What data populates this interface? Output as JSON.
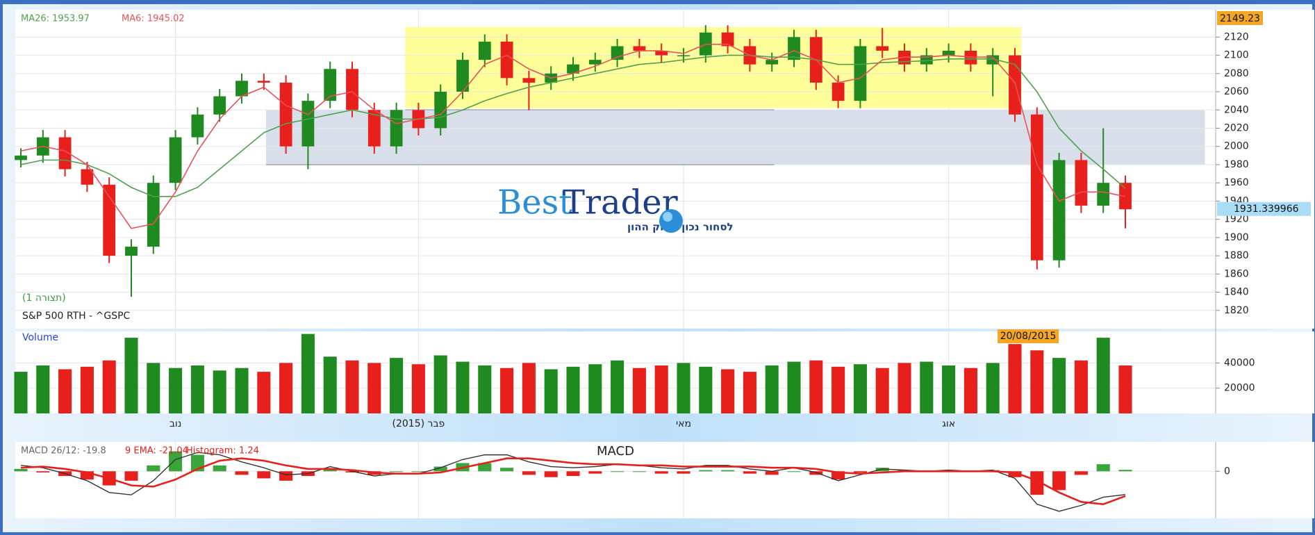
{
  "chart_data": [
    {
      "type": "candlestick",
      "title": "S&P 500 RTH - ^GSPC",
      "subtitle": "(תצורה 1)",
      "watermark": {
        "brand_first": "Best",
        "brand_second": "Trader",
        "tagline": "לסחור נכון בשוק ההון"
      },
      "categories": [
        null,
        null,
        null,
        null,
        null,
        null,
        null,
        "נוב",
        null,
        null,
        null,
        null,
        null,
        null,
        null,
        null,
        null,
        null,
        "פבר (2015)",
        null,
        null,
        null,
        null,
        null,
        null,
        null,
        null,
        null,
        null,
        null,
        "מאי",
        null,
        null,
        null,
        null,
        null,
        null,
        null,
        null,
        null,
        null,
        null,
        "אוג",
        null,
        null,
        null,
        null,
        null,
        null,
        null,
        null
      ],
      "open": [
        1985,
        1990,
        2010,
        1975,
        1958,
        1880,
        1890,
        1960,
        2010,
        2035,
        2055,
        2072,
        2070,
        2000,
        2050,
        2085,
        2040,
        2000,
        2040,
        2020,
        2060,
        2095,
        2115,
        2075,
        2070,
        2080,
        2090,
        2095,
        2110,
        2105,
        2100,
        2100,
        2125,
        2110,
        2090,
        2095,
        2120,
        2070,
        2050,
        2110,
        2105,
        2090,
        2100,
        2105,
        2090,
        2100,
        2035,
        1875,
        1985,
        1935,
        1960
      ],
      "high": [
        1998,
        2018,
        2018,
        1983,
        1966,
        1898,
        1968,
        2018,
        2043,
        2063,
        2080,
        2080,
        2078,
        2058,
        2093,
        2093,
        2048,
        2048,
        2048,
        2068,
        2103,
        2123,
        2123,
        2083,
        2088,
        2098,
        2103,
        2118,
        2118,
        2113,
        2108,
        2133,
        2133,
        2118,
        2103,
        2128,
        2128,
        2078,
        2118,
        2130,
        2113,
        2108,
        2113,
        2113,
        2108,
        2108,
        2043,
        1993,
        1993,
        2020,
        1968
      ],
      "low": [
        1977,
        1982,
        1967,
        1950,
        1872,
        1835,
        1882,
        1952,
        2002,
        2027,
        2047,
        2062,
        1992,
        1975,
        2042,
        2032,
        1992,
        1992,
        2012,
        2012,
        2052,
        2087,
        2067,
        2040,
        2062,
        2072,
        2082,
        2087,
        2097,
        2092,
        2092,
        2092,
        2102,
        2082,
        2082,
        2087,
        2062,
        2042,
        2042,
        2097,
        2082,
        2082,
        2092,
        2082,
        2055,
        2027,
        1865,
        1867,
        1927,
        1927,
        1910
      ],
      "close": [
        1990,
        2010,
        1975,
        1958,
        1880,
        1890,
        1960,
        2010,
        2035,
        2055,
        2072,
        2070,
        2000,
        2050,
        2085,
        2040,
        2000,
        2040,
        2020,
        2060,
        2095,
        2115,
        2075,
        2070,
        2080,
        2090,
        2095,
        2110,
        2105,
        2100,
        2100,
        2125,
        2110,
        2090,
        2095,
        2120,
        2070,
        2050,
        2110,
        2105,
        2090,
        2100,
        2105,
        2090,
        2100,
        2035,
        1875,
        1985,
        1935,
        1960,
        1931
      ],
      "up_color": "#1f8a1f",
      "down_color": "#e8201c",
      "series": [
        {
          "name": "MA26: 1953.97",
          "color": "#4fa04f",
          "values": [
            1980,
            1985,
            1985,
            1980,
            1970,
            1955,
            1945,
            1945,
            1955,
            1975,
            1995,
            2015,
            2025,
            2030,
            2035,
            2040,
            2035,
            2030,
            2030,
            2032,
            2040,
            2050,
            2058,
            2065,
            2070,
            2075,
            2080,
            2085,
            2090,
            2092,
            2095,
            2098,
            2100,
            2100,
            2098,
            2098,
            2095,
            2090,
            2090,
            2092,
            2093,
            2094,
            2096,
            2096,
            2096,
            2090,
            2060,
            2020,
            1995,
            1975,
            1953.97
          ]
        },
        {
          "name": "MA6: 1945.02",
          "color": "#e8505a",
          "values": [
            1995,
            2000,
            1995,
            1980,
            1945,
            1910,
            1915,
            1950,
            1995,
            2030,
            2055,
            2065,
            2045,
            2035,
            2055,
            2060,
            2040,
            2025,
            2030,
            2035,
            2060,
            2090,
            2100,
            2085,
            2075,
            2080,
            2088,
            2098,
            2105,
            2105,
            2102,
            2112,
            2112,
            2100,
            2095,
            2105,
            2095,
            2070,
            2075,
            2095,
            2098,
            2098,
            2100,
            2098,
            2098,
            2070,
            1980,
            1940,
            1950,
            1950,
            1945.02
          ]
        }
      ],
      "zones": [
        {
          "from": 2042,
          "to": 2131,
          "color": "#ffff99"
        },
        {
          "from": 1980,
          "to": 2040,
          "color": "#d9dfea"
        }
      ],
      "levels": [
        2040,
        1980
      ],
      "high_label": 2149.23,
      "last_price": 1931.339966,
      "ylim": [
        1800,
        2150
      ],
      "yticks": [
        1820,
        1840,
        1860,
        1880,
        1900,
        1920,
        1940,
        1960,
        1980,
        2000,
        2020,
        2040,
        2060,
        2080,
        2100,
        2120
      ],
      "grid": true
    },
    {
      "type": "bar",
      "title": "Volume",
      "date_label": "20/08/2015",
      "values": [
        33000,
        38000,
        35000,
        37000,
        42000,
        60000,
        40000,
        36000,
        38000,
        34000,
        36000,
        33000,
        40000,
        63000,
        45000,
        42000,
        40000,
        44000,
        39000,
        46000,
        41000,
        38000,
        36000,
        40000,
        35000,
        37000,
        39000,
        42000,
        36000,
        38000,
        40000,
        37000,
        35000,
        33000,
        38000,
        41000,
        42000,
        37000,
        39000,
        36000,
        40000,
        41000,
        38000,
        36000,
        40000,
        55000,
        50000,
        44000,
        42000,
        60000,
        38000
      ],
      "ylim": [
        0,
        65000
      ],
      "yticks": [
        20000,
        40000
      ],
      "grid": true
    },
    {
      "type": "line",
      "title": "MACD",
      "series": [
        {
          "name": "MACD 26/12: -19.8",
          "color": "#333333",
          "values": [
            5,
            3,
            -2,
            -8,
            -18,
            -20,
            -8,
            10,
            16,
            14,
            8,
            3,
            -3,
            -2,
            4,
            0,
            -4,
            -2,
            -2,
            3,
            10,
            14,
            14,
            8,
            4,
            3,
            4,
            6,
            5,
            3,
            2,
            5,
            5,
            2,
            0,
            3,
            -1,
            -8,
            -3,
            2,
            1,
            0,
            1,
            0,
            1,
            -6,
            -28,
            -34,
            -29,
            -22,
            -19.8
          ]
        },
        {
          "name": "9 EMA: -21.04",
          "color": "#e8201c",
          "values": [
            3,
            4,
            2,
            -1,
            -6,
            -12,
            -13,
            -7,
            2,
            9,
            11,
            9,
            5,
            2,
            2,
            1,
            -1,
            -2,
            -2,
            -1,
            3,
            7,
            11,
            11,
            9,
            7,
            6,
            6,
            5,
            5,
            4,
            4,
            4,
            4,
            3,
            3,
            2,
            -1,
            -2,
            -1,
            0,
            0,
            0,
            0,
            0,
            -1,
            -8,
            -18,
            -26,
            -28,
            -21.04
          ]
        }
      ],
      "histogram": {
        "name": "Histogram: 1.24",
        "up_color": "#3aa53a",
        "down_color": "#e8201c",
        "values": [
          2,
          -1,
          -4,
          -7,
          -12,
          -8,
          5,
          17,
          14,
          5,
          -3,
          -6,
          -8,
          -4,
          2,
          -1,
          -3,
          0,
          0,
          4,
          7,
          7,
          3,
          -3,
          -5,
          -4,
          -2,
          0,
          0,
          -2,
          -2,
          1,
          1,
          -2,
          -3,
          0,
          -3,
          -7,
          -1,
          3,
          1,
          0,
          1,
          0,
          1,
          -5,
          -20,
          -16,
          -3,
          6,
          1.24
        ]
      },
      "ylim": [
        -40,
        25
      ],
      "yticks": [
        0
      ],
      "grid": true
    }
  ]
}
